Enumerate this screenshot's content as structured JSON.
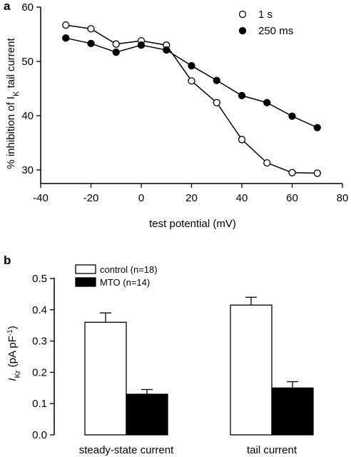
{
  "chart_data": [
    {
      "panel_label": "a",
      "type": "line",
      "xlabel": "test potential (mV)",
      "ylabel": "% inhibition of I",
      "ylabel_subscript": "K",
      "ylabel_suffix": " tail current",
      "xlim": [
        -40,
        80
      ],
      "ylim": [
        27.5,
        60
      ],
      "xticks": [
        "-40",
        "-20",
        "0",
        "20",
        "40",
        "60",
        "80"
      ],
      "yticks": [
        "30",
        "40",
        "50",
        "60"
      ],
      "legend_position": "top-right",
      "series": [
        {
          "name": "1 s",
          "marker": "open-circle",
          "x": [
            -30,
            -20,
            -10,
            0,
            10,
            20,
            30,
            40,
            50,
            60,
            70
          ],
          "y": [
            56.7,
            56.0,
            53.2,
            53.8,
            53.0,
            46.4,
            42.4,
            35.6,
            31.3,
            29.5,
            29.4
          ]
        },
        {
          "name": "250 ms",
          "marker": "filled-circle",
          "x": [
            -30,
            -20,
            -10,
            0,
            10,
            20,
            30,
            40,
            50,
            60,
            70
          ],
          "y": [
            54.3,
            53.3,
            51.7,
            53.0,
            52.1,
            49.2,
            46.5,
            43.7,
            42.4,
            39.9,
            37.8
          ]
        }
      ]
    },
    {
      "panel_label": "b",
      "type": "bar",
      "ylabel_main": "I",
      "ylabel_subscript": "Kr",
      "ylabel_unit_open": " (pA pF",
      "ylabel_unit_sup": "-1",
      "ylabel_unit_close": ")",
      "ylim": [
        0,
        0.5
      ],
      "yticks": [
        "0.0",
        "0.1",
        "0.2",
        "0.3",
        "0.4",
        "0.5"
      ],
      "categories": [
        "steady-state current",
        "tail current"
      ],
      "legend_position": "top-left",
      "series": [
        {
          "name": "control (n=18)",
          "fill": "#ffffff",
          "values": [
            0.36,
            0.415
          ],
          "errors": [
            0.03,
            0.025
          ]
        },
        {
          "name": "MTO (n=14)",
          "fill": "#000000",
          "values": [
            0.13,
            0.15
          ],
          "errors": [
            0.015,
            0.02
          ]
        }
      ]
    }
  ]
}
